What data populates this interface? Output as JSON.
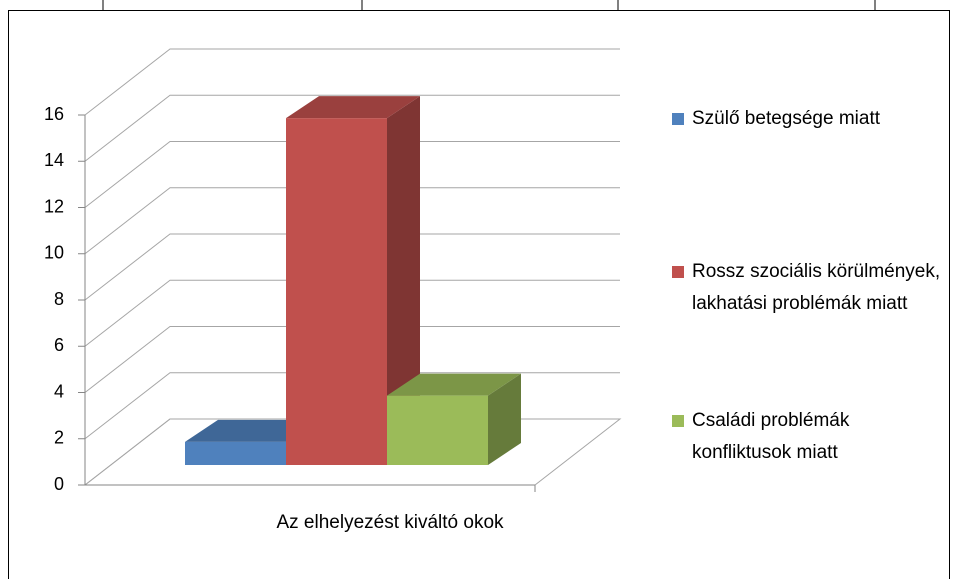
{
  "chart_data": {
    "type": "bar3d",
    "categories": [
      "Az elhelyezést kiváltó okok"
    ],
    "series": [
      {
        "name": "Szülő betegsége miatt",
        "color": "#4f81bd",
        "values": [
          1
        ]
      },
      {
        "name": "Rossz szociális körülmények, lakhatási problémák miatt",
        "color": "#c0504d",
        "values": [
          15
        ]
      },
      {
        "name": "Családi problémák konfliktusok miatt",
        "color": "#9bbb59",
        "values": [
          3
        ]
      }
    ],
    "ylim": [
      0,
      16
    ],
    "yticks": [
      0,
      2,
      4,
      6,
      8,
      10,
      12,
      14,
      16
    ],
    "grid": true,
    "legend": "right"
  }
}
